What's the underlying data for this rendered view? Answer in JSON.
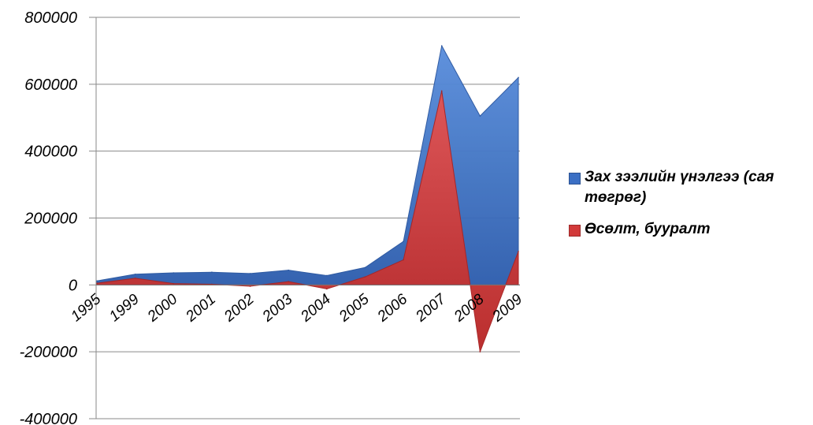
{
  "chart_data": {
    "type": "area",
    "categories": [
      "1995",
      "1999",
      "2000",
      "2001",
      "2002",
      "2003",
      "2004",
      "2005",
      "2006",
      "2007",
      "2008",
      "2009"
    ],
    "series": [
      {
        "name": "Зах зээлийн үнэлгээ (сая төгрөг)",
        "color": "#3b6fc4",
        "values": [
          12000,
          32000,
          36000,
          38000,
          34000,
          44000,
          28000,
          52000,
          130000,
          715000,
          505000,
          620000
        ]
      },
      {
        "name": "Өсөлт, бууралт",
        "color": "#d23a3a",
        "values": [
          5000,
          20000,
          4000,
          2000,
          -4000,
          10000,
          -12000,
          24000,
          75000,
          580000,
          -200000,
          100000
        ]
      }
    ],
    "yticks": [
      "800000",
      "600000",
      "400000",
      "200000",
      "0",
      "-200000",
      "-400000"
    ],
    "ylim": [
      -400000,
      800000
    ],
    "grid": true,
    "legend_position": "right"
  }
}
